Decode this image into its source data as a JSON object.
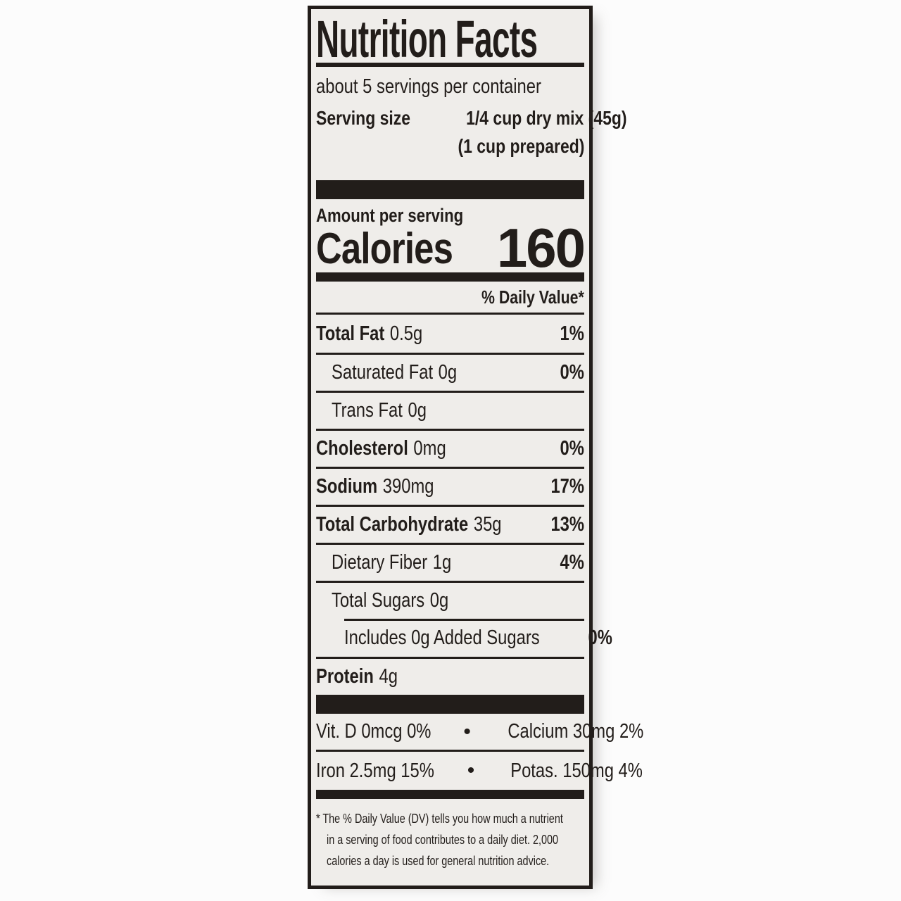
{
  "label": {
    "title": "Nutrition Facts",
    "servings_per_container": "about 5 servings per container",
    "serving_size_label": "Serving size",
    "serving_size_value": "1/4 cup dry mix (45g)",
    "serving_size_prepared": "(1 cup prepared)",
    "amount_per_serving": "Amount per serving",
    "calories_label": "Calories",
    "calories_value": "160",
    "daily_value_header": "% Daily Value*",
    "nutrients": [
      {
        "name": "Total Fat",
        "amount": "0.5g",
        "dv": "1%",
        "bold": true,
        "indent": 0,
        "rule": "none"
      },
      {
        "name": "Saturated Fat",
        "amount": "0g",
        "dv": "0%",
        "bold": false,
        "indent": 1,
        "rule": "full"
      },
      {
        "name": "Trans Fat",
        "amount": "0g",
        "dv": "",
        "bold": false,
        "indent": 1,
        "rule": "full"
      },
      {
        "name": "Cholesterol",
        "amount": "0mg",
        "dv": "0%",
        "bold": true,
        "indent": 0,
        "rule": "full"
      },
      {
        "name": "Sodium",
        "amount": "390mg",
        "dv": "17%",
        "bold": true,
        "indent": 0,
        "rule": "full"
      },
      {
        "name": "Total Carbohydrate",
        "amount": "35g",
        "dv": "13%",
        "bold": true,
        "indent": 0,
        "rule": "full"
      },
      {
        "name": "Dietary Fiber",
        "amount": "1g",
        "dv": "4%",
        "bold": false,
        "indent": 1,
        "rule": "full"
      },
      {
        "name": "Total Sugars",
        "amount": "0g",
        "dv": "",
        "bold": false,
        "indent": 1,
        "rule": "full"
      },
      {
        "name": "Includes 0g Added Sugars",
        "amount": "",
        "dv": "0%",
        "bold": false,
        "indent": 2,
        "rule": "indent"
      },
      {
        "name": "Protein",
        "amount": "4g",
        "dv": "",
        "bold": true,
        "indent": 0,
        "rule": "full"
      }
    ],
    "micronutrients": {
      "bullet": "•",
      "rows": [
        {
          "left": "Vit. D 0mcg 0%",
          "right": "Calcium 30mg 2%"
        },
        {
          "left": "Iron 2.5mg 15%",
          "right": "Potas. 150mg 4%"
        }
      ]
    },
    "footnote_lines": [
      "* The % Daily Value (DV) tells you how much a nutrient",
      "in a serving of food contributes to a daily diet. 2,000",
      "calories a day is used for general nutrition advice."
    ]
  },
  "colors": {
    "ink": "#221d1a",
    "label_bg": "#efedea",
    "page_bg": "#fcfcfc"
  }
}
